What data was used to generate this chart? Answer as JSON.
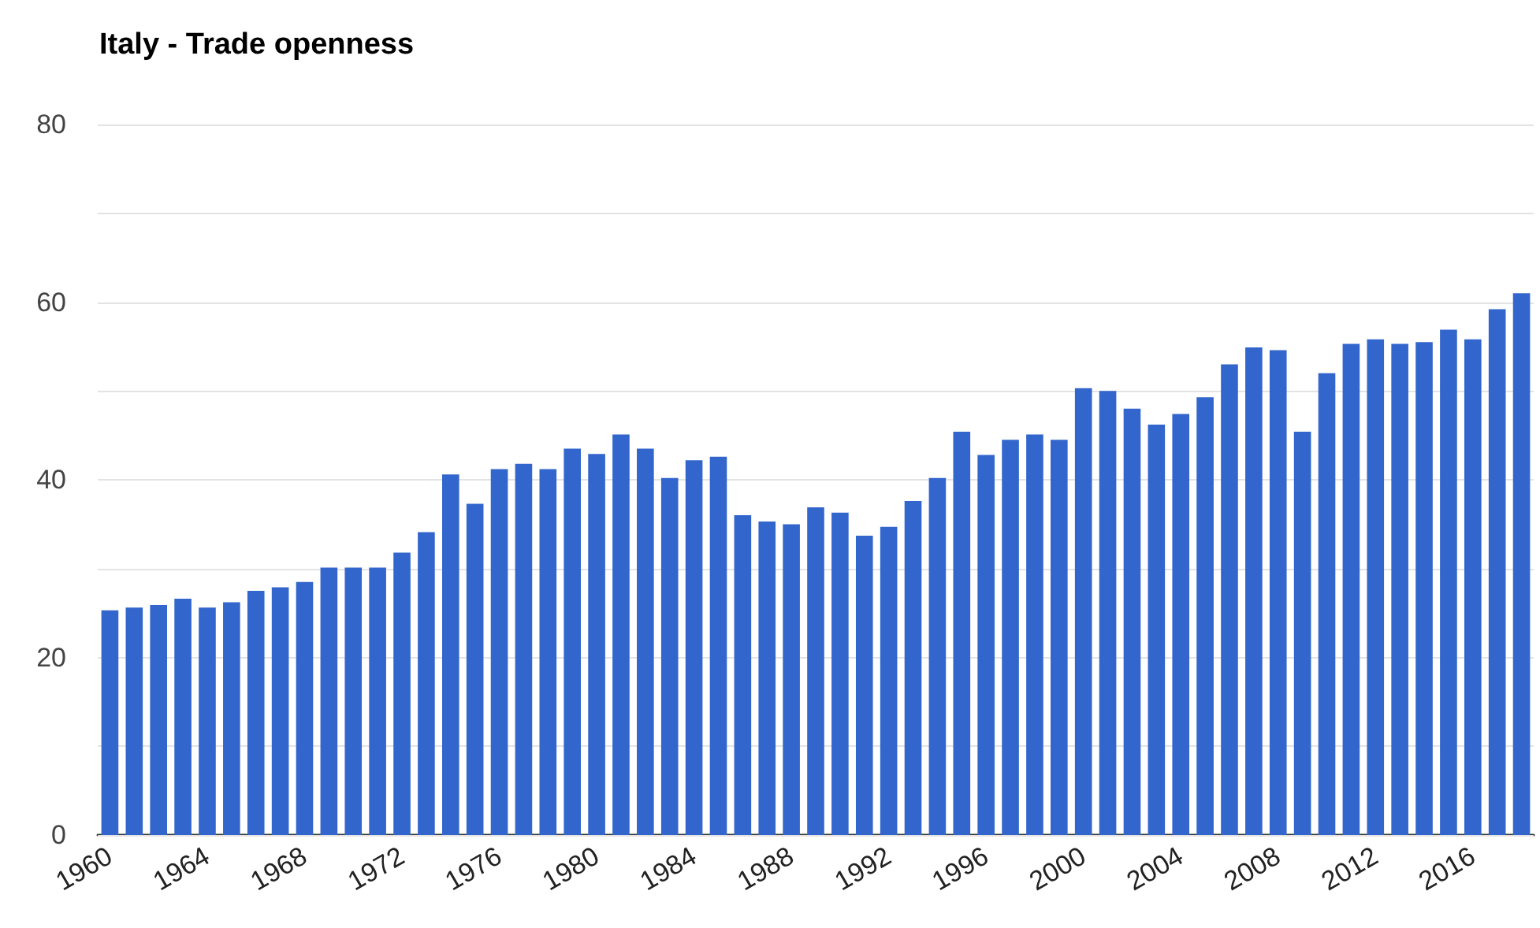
{
  "chart_data": {
    "type": "bar",
    "title": "Italy - Trade openness",
    "categories": [
      "1960",
      null,
      null,
      null,
      "1964",
      null,
      null,
      null,
      "1968",
      null,
      null,
      null,
      "1972",
      null,
      null,
      null,
      "1976",
      null,
      null,
      null,
      "1980",
      null,
      null,
      null,
      "1984",
      null,
      null,
      null,
      "1988",
      null,
      null,
      null,
      "1992",
      null,
      null,
      null,
      "1996",
      null,
      null,
      null,
      "2000",
      null,
      null,
      null,
      "2004",
      null,
      null,
      null,
      "2008",
      null,
      null,
      null,
      "2012",
      null,
      null,
      null,
      "2016",
      null,
      null
    ],
    "values": [
      25.3,
      25.6,
      25.9,
      26.6,
      25.6,
      26.2,
      27.5,
      27.9,
      28.5,
      30.1,
      30.1,
      30.1,
      31.8,
      34.1,
      40.6,
      37.3,
      41.2,
      41.8,
      41.2,
      43.5,
      42.9,
      45.1,
      43.5,
      40.2,
      42.2,
      42.6,
      36.0,
      35.3,
      35.0,
      36.9,
      36.3,
      33.7,
      34.7,
      37.6,
      40.2,
      45.4,
      42.8,
      44.5,
      45.1,
      44.5,
      50.3,
      50.0,
      48.0,
      46.2,
      47.4,
      49.3,
      53.0,
      54.9,
      54.6,
      45.4,
      52.0,
      55.3,
      55.8,
      55.3,
      55.5,
      56.9,
      55.8,
      59.2,
      61.0
    ],
    "color": "#3366cc",
    "ylim": [
      0,
      80
    ],
    "yticks": [
      0,
      {
        "value": 10,
        "label": null
      },
      20,
      {
        "value": 30,
        "label": null
      },
      40,
      {
        "value": 50,
        "label": null
      },
      60,
      {
        "value": 70,
        "label": null
      },
      80
    ],
    "grid": "y"
  }
}
